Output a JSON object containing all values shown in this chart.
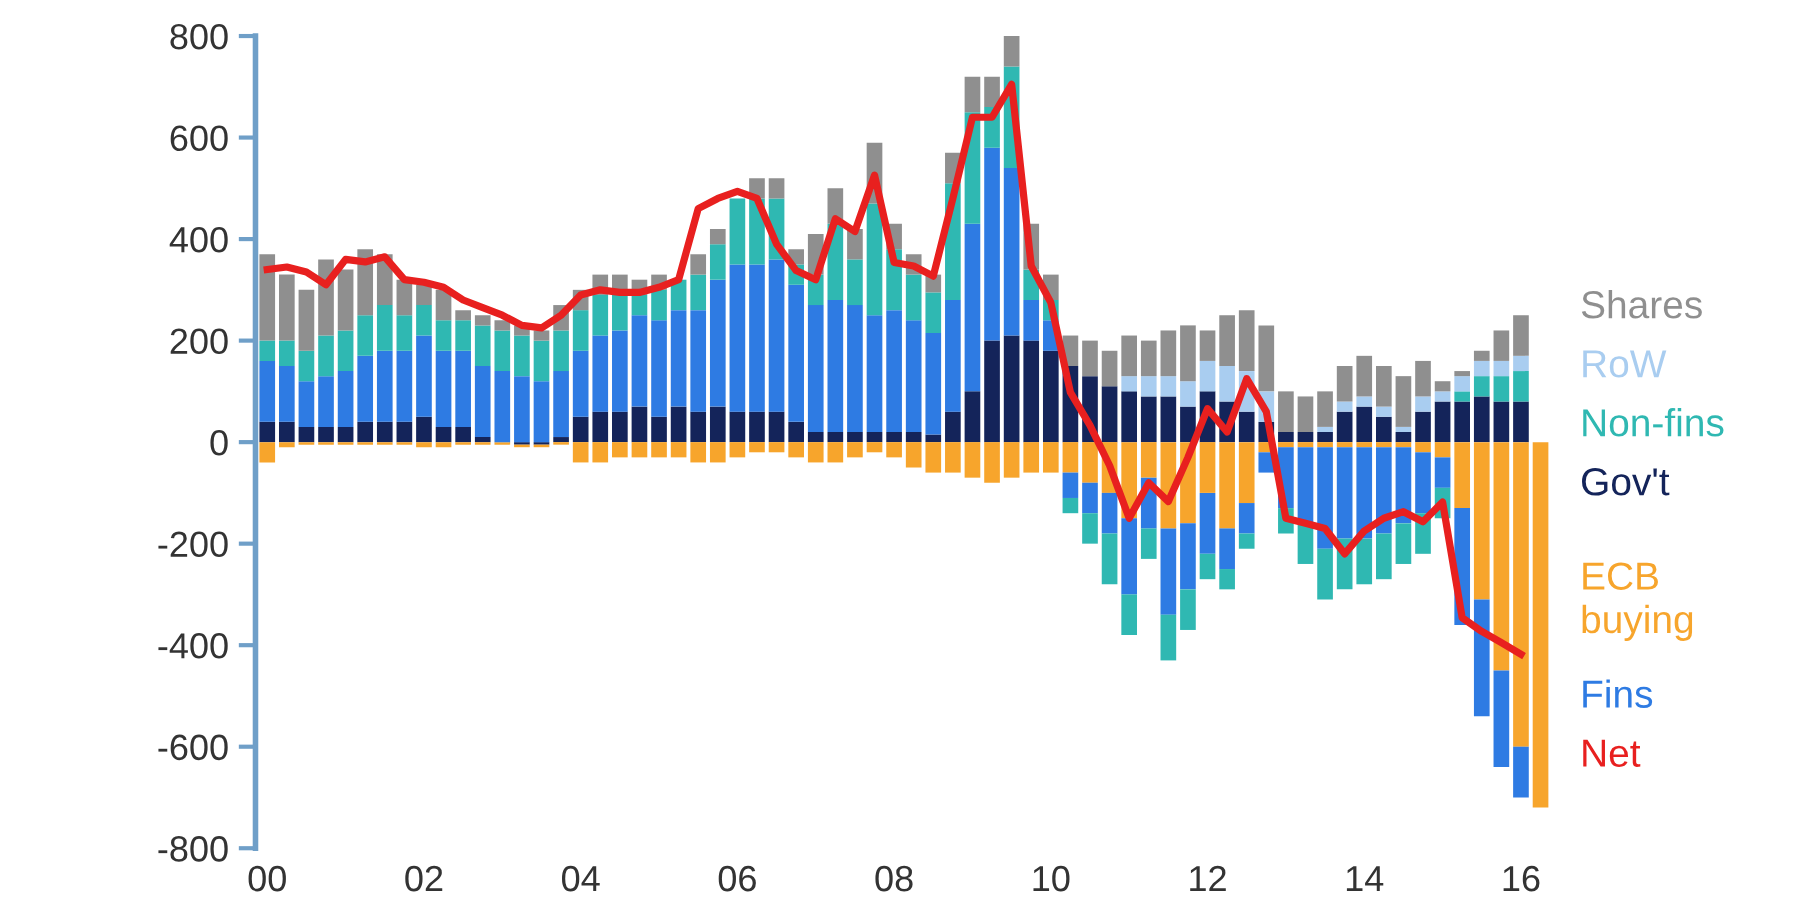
{
  "chart_data": {
    "type": "bar",
    "stacked": true,
    "legend": "right",
    "grid": false,
    "x": [
      2000,
      2000.25,
      2000.5,
      2000.75,
      2001,
      2001.25,
      2001.5,
      2001.75,
      2002,
      2002.25,
      2002.5,
      2002.75,
      2003,
      2003.25,
      2003.5,
      2003.75,
      2004,
      2004.25,
      2004.5,
      2004.75,
      2005,
      2005.25,
      2005.5,
      2005.75,
      2006,
      2006.25,
      2006.5,
      2006.75,
      2007,
      2007.25,
      2007.5,
      2007.75,
      2008,
      2008.25,
      2008.5,
      2008.75,
      2009,
      2009.25,
      2009.5,
      2009.75,
      2010,
      2010.25,
      2010.5,
      2010.75,
      2011,
      2011.25,
      2011.5,
      2011.75,
      2012,
      2012.25,
      2012.5,
      2012.75,
      2013,
      2013.25,
      2013.5,
      2013.75,
      2014,
      2014.25,
      2014.5,
      2014.75,
      2015,
      2015.25,
      2015.5,
      2015.75,
      2016,
      2016.25
    ],
    "xlim": [
      1999.85,
      2016.5
    ],
    "xticks": [
      {
        "value": 2000,
        "label": "00"
      },
      {
        "value": 2002,
        "label": "02"
      },
      {
        "value": 2004,
        "label": "04"
      },
      {
        "value": 2006,
        "label": "06"
      },
      {
        "value": 2008,
        "label": "08"
      },
      {
        "value": 2010,
        "label": "10"
      },
      {
        "value": 2012,
        "label": "12"
      },
      {
        "value": 2014,
        "label": "14"
      },
      {
        "value": 2016,
        "label": "16"
      }
    ],
    "ylim": [
      -800,
      800
    ],
    "yticks": [
      -800,
      -600,
      -400,
      -200,
      0,
      200,
      400,
      600,
      800
    ],
    "series": [
      {
        "name": "Gov't",
        "color": "#14245a",
        "values": [
          40,
          40,
          30,
          30,
          30,
          40,
          40,
          40,
          50,
          30,
          30,
          10,
          0,
          -5,
          -5,
          10,
          50,
          60,
          60,
          70,
          50,
          70,
          60,
          70,
          60,
          60,
          60,
          40,
          20,
          20,
          20,
          20,
          20,
          20,
          15,
          60,
          100,
          200,
          210,
          200,
          180,
          150,
          130,
          110,
          100,
          90,
          90,
          70,
          100,
          80,
          60,
          40,
          20,
          20,
          20,
          60,
          70,
          50,
          20,
          60,
          80,
          80,
          90,
          80,
          80,
          0
        ]
      },
      {
        "name": "ECB\nbuying",
        "color": "#f7a52c",
        "values": [
          -40,
          -10,
          -5,
          -5,
          -5,
          -5,
          -5,
          -5,
          -10,
          -10,
          -5,
          -5,
          -5,
          -5,
          -5,
          -5,
          -40,
          -40,
          -30,
          -30,
          -30,
          -30,
          -40,
          -40,
          -30,
          -20,
          -20,
          -30,
          -40,
          -40,
          -30,
          -20,
          -30,
          -50,
          -60,
          -60,
          -70,
          -80,
          -70,
          -60,
          -60,
          -60,
          -80,
          -100,
          -150,
          -70,
          -170,
          -160,
          -100,
          -170,
          -120,
          -20,
          -10,
          -10,
          -10,
          -10,
          -10,
          -10,
          -10,
          -20,
          -30,
          -130,
          -310,
          -450,
          -600,
          -720
        ]
      },
      {
        "name": "Fins",
        "color": "#2e7be3",
        "values": [
          120,
          110,
          90,
          100,
          110,
          130,
          140,
          140,
          160,
          150,
          150,
          140,
          140,
          130,
          120,
          130,
          130,
          150,
          160,
          180,
          190,
          190,
          200,
          250,
          290,
          290,
          300,
          270,
          250,
          260,
          250,
          230,
          240,
          220,
          200,
          220,
          330,
          380,
          330,
          80,
          60,
          -50,
          -60,
          -80,
          -150,
          -100,
          -170,
          -130,
          -120,
          -80,
          -60,
          -40,
          -120,
          -150,
          -200,
          -180,
          -180,
          -170,
          -150,
          -120,
          -60,
          -230,
          -230,
          -190,
          -100,
          0
        ]
      },
      {
        "name": "Non-fins",
        "color": "#2fb8b2",
        "values": [
          40,
          50,
          60,
          80,
          80,
          80,
          90,
          70,
          60,
          60,
          60,
          80,
          80,
          80,
          80,
          80,
          80,
          80,
          80,
          40,
          60,
          60,
          70,
          70,
          130,
          130,
          120,
          40,
          60,
          150,
          90,
          220,
          120,
          90,
          80,
          230,
          220,
          80,
          200,
          60,
          40,
          -30,
          -60,
          -100,
          -80,
          -60,
          -90,
          -80,
          -50,
          -40,
          -30,
          0,
          -50,
          -80,
          -100,
          -100,
          -90,
          -90,
          -80,
          -80,
          -60,
          20,
          40,
          50,
          60,
          0
        ]
      },
      {
        "name": "RoW",
        "color": "#a9cdf0",
        "values": [
          0,
          0,
          0,
          0,
          0,
          0,
          0,
          0,
          0,
          0,
          0,
          0,
          0,
          0,
          0,
          0,
          0,
          0,
          0,
          0,
          0,
          0,
          0,
          0,
          0,
          0,
          0,
          0,
          0,
          0,
          0,
          0,
          0,
          0,
          0,
          0,
          0,
          0,
          0,
          0,
          0,
          0,
          0,
          0,
          30,
          40,
          40,
          50,
          60,
          70,
          80,
          60,
          0,
          0,
          10,
          20,
          20,
          20,
          10,
          30,
          20,
          30,
          30,
          30,
          30,
          0
        ]
      },
      {
        "name": "Shares",
        "color": "#8f8f8f",
        "values": [
          170,
          130,
          120,
          150,
          120,
          130,
          100,
          70,
          40,
          60,
          20,
          20,
          20,
          20,
          20,
          50,
          40,
          40,
          30,
          30,
          30,
          null,
          40,
          30,
          null,
          40,
          40,
          30,
          80,
          70,
          60,
          120,
          50,
          40,
          35,
          60,
          70,
          60,
          65,
          90,
          50,
          60,
          70,
          70,
          80,
          70,
          90,
          110,
          60,
          100,
          120,
          130,
          80,
          70,
          70,
          70,
          80,
          80,
          100,
          70,
          20,
          10,
          20,
          60,
          80,
          0
        ]
      },
      {
        "name": "Net",
        "type": "line",
        "color": "#e8201f",
        "values": [
          340,
          345,
          335,
          310,
          360,
          355,
          365,
          320,
          315,
          305,
          280,
          265,
          250,
          230,
          225,
          250,
          290,
          300,
          295,
          295,
          305,
          320,
          460,
          480,
          494,
          480,
          390,
          338,
          320,
          440,
          415,
          526,
          354,
          347,
          327,
          480,
          640,
          640,
          705,
          347,
          275,
          98,
          33,
          -46,
          -150,
          -80,
          -117,
          -30,
          66,
          20,
          125,
          60,
          -150,
          -160,
          -170,
          -220,
          -175,
          -150,
          -137,
          -157,
          -118,
          -346,
          -373,
          -395,
          -418,
          null
        ]
      }
    ]
  }
}
